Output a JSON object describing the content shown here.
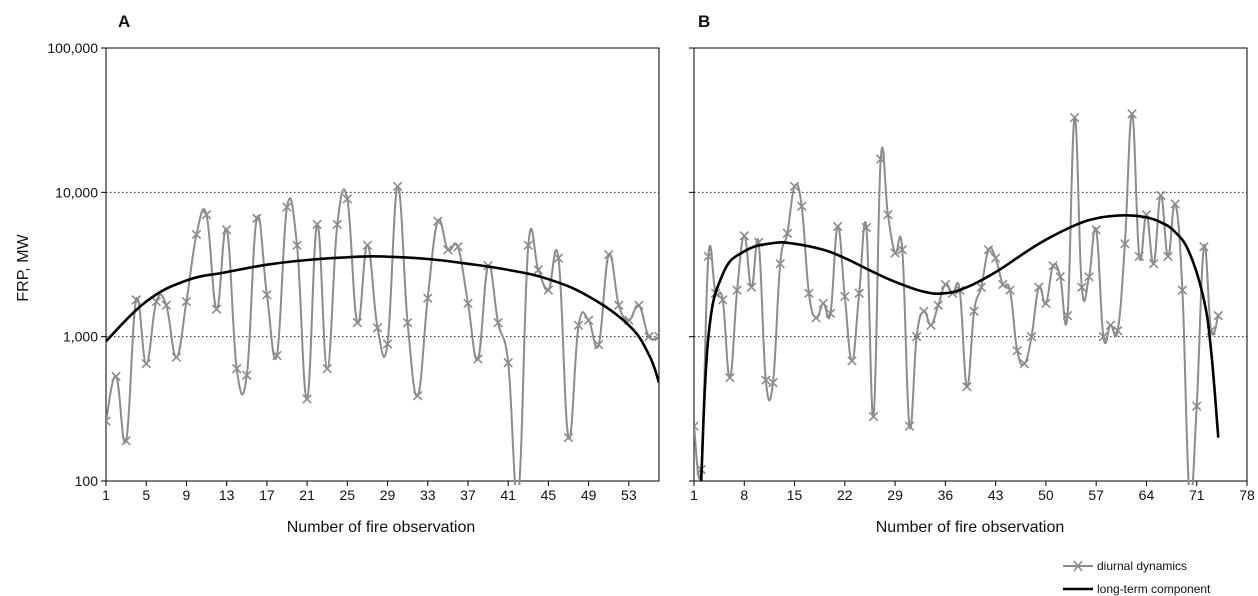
{
  "chart_data": [
    {
      "type": "line",
      "panel": "A",
      "title": "",
      "xlabel": "Number of fire observation",
      "ylabel": "FRP, MW",
      "yscale": "log",
      "ylim": [
        100,
        100000
      ],
      "xlim": [
        1,
        56
      ],
      "y_ticks": [
        100,
        1000,
        10000,
        100000
      ],
      "y_tick_labels": [
        "100",
        "1,000",
        "10,000",
        "100,000"
      ],
      "x_ticks": [
        1,
        5,
        9,
        13,
        17,
        21,
        25,
        29,
        33,
        37,
        41,
        45,
        49,
        53
      ],
      "x_tick_labels": [
        "1",
        "5",
        "9",
        "13",
        "17",
        "21",
        "25",
        "29",
        "33",
        "37",
        "41",
        "45",
        "49",
        "53"
      ],
      "grid": "dotted horizontal at 1,000 and 10,000",
      "series": [
        {
          "name": "diurnal dynamics",
          "style": "gray line with x markers, smoothed",
          "color": "#8c8c8c",
          "x": [
            1,
            2,
            3,
            4,
            5,
            6,
            7,
            8,
            9,
            10,
            11,
            12,
            13,
            14,
            15,
            16,
            17,
            18,
            19,
            20,
            21,
            22,
            23,
            24,
            25,
            26,
            27,
            28,
            29,
            30,
            31,
            32,
            33,
            34,
            35,
            36,
            37,
            38,
            39,
            40,
            41,
            42,
            43,
            44,
            45,
            46,
            47,
            48,
            49,
            50,
            51,
            52,
            53,
            54,
            55,
            56
          ],
          "y": [
            260,
            530,
            190,
            1800,
            650,
            1750,
            1650,
            720,
            1750,
            5100,
            7000,
            1550,
            5500,
            600,
            540,
            6600,
            1950,
            740,
            7900,
            4300,
            370,
            6000,
            600,
            6000,
            9000,
            1250,
            4300,
            1150,
            890,
            11000,
            1250,
            390,
            1850,
            6300,
            4000,
            4200,
            1700,
            700,
            3100,
            1250,
            660,
            80,
            4300,
            2900,
            2100,
            3500,
            200,
            1200,
            1300,
            880,
            3700,
            1650,
            1300,
            1650,
            1000,
            1000
          ]
        },
        {
          "name": "long-term component",
          "style": "black solid curve",
          "color": "#000000",
          "x": [
            1,
            5,
            9,
            13,
            17,
            21,
            25,
            27,
            29,
            33,
            37,
            41,
            45,
            49,
            53,
            55,
            56
          ],
          "y": [
            930,
            1750,
            2450,
            2800,
            3150,
            3400,
            3550,
            3600,
            3580,
            3450,
            3200,
            2900,
            2500,
            1900,
            1200,
            750,
            480
          ]
        }
      ]
    },
    {
      "type": "line",
      "panel": "B",
      "title": "",
      "xlabel": "Number of fire observation",
      "ylabel": "",
      "yscale": "log",
      "ylim": [
        100,
        100000
      ],
      "xlim": [
        1,
        78
      ],
      "y_ticks": [
        100,
        1000,
        10000,
        100000
      ],
      "x_ticks": [
        1,
        8,
        15,
        22,
        29,
        36,
        43,
        50,
        57,
        64,
        71,
        78
      ],
      "x_tick_labels": [
        "1",
        "8",
        "15",
        "22",
        "29",
        "36",
        "43",
        "50",
        "57",
        "64",
        "71",
        "78"
      ],
      "grid": "dotted horizontal at 1,000 and 10,000",
      "series": [
        {
          "name": "diurnal dynamics",
          "style": "gray line with x markers, smoothed",
          "color": "#8c8c8c",
          "x": [
            1,
            2,
            3,
            4,
            5,
            6,
            7,
            8,
            9,
            10,
            11,
            12,
            13,
            14,
            15,
            16,
            17,
            18,
            19,
            20,
            21,
            22,
            23,
            24,
            25,
            26,
            27,
            28,
            29,
            30,
            31,
            32,
            33,
            34,
            35,
            36,
            37,
            38,
            39,
            40,
            41,
            42,
            43,
            44,
            45,
            46,
            47,
            48,
            49,
            50,
            51,
            52,
            53,
            54,
            55,
            56,
            57,
            58,
            59,
            60,
            61,
            62,
            63,
            64,
            65,
            66,
            67,
            68,
            69,
            70,
            71,
            72,
            73,
            74
          ],
          "y": [
            240,
            120,
            3600,
            2000,
            1800,
            520,
            2100,
            5000,
            2200,
            4500,
            500,
            480,
            3200,
            5200,
            11000,
            8000,
            2000,
            1350,
            1700,
            1450,
            5800,
            1900,
            680,
            2000,
            5700,
            280,
            17000,
            7000,
            3800,
            4000,
            240,
            1000,
            1500,
            1200,
            1650,
            2300,
            2000,
            2100,
            450,
            1500,
            2200,
            4000,
            3500,
            2300,
            2100,
            800,
            650,
            1000,
            2200,
            1700,
            3100,
            2600,
            1400,
            33000,
            2200,
            2600,
            5500,
            1000,
            1200,
            1100,
            4400,
            35000,
            3600,
            7000,
            3200,
            9500,
            3600,
            8300,
            2100,
            80,
            330,
            4200,
            1100,
            1400
          ]
        },
        {
          "name": "long-term component",
          "style": "black solid curve",
          "color": "#000000",
          "x": [
            2,
            3,
            5,
            8,
            12,
            15,
            19,
            22,
            26,
            29,
            33,
            36,
            39,
            43,
            47,
            50,
            54,
            57,
            60,
            62,
            64,
            66,
            68,
            70,
            72,
            73,
            74
          ],
          "y": [
            100,
            1000,
            2700,
            3900,
            4450,
            4400,
            4000,
            3500,
            2800,
            2400,
            2050,
            2000,
            2200,
            2800,
            3800,
            4700,
            5900,
            6600,
            6900,
            6900,
            6700,
            6200,
            5300,
            3800,
            1800,
            800,
            200
          ]
        }
      ]
    }
  ],
  "panels": [
    {
      "letter": "A"
    },
    {
      "letter": "B"
    }
  ],
  "legend": {
    "position": "bottom-right",
    "items": [
      {
        "label": "diurnal dynamics",
        "marker": "gray line with x marker"
      },
      {
        "label": "long-term component",
        "marker": "black line"
      }
    ]
  },
  "colors": {
    "diurnal": "#8c8c8c",
    "longterm": "#000000",
    "grid": "#222222"
  }
}
